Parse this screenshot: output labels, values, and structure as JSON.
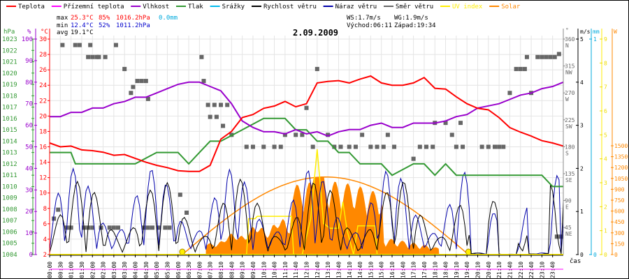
{
  "chart_data": {
    "type": "line",
    "title": "2.09.2009",
    "xlabel": "čas",
    "legend_position": "top",
    "legend": [
      {
        "name": "Teplota",
        "color": "#ff0000"
      },
      {
        "name": "Přízemní teplota",
        "color": "#ff00ff"
      },
      {
        "name": "Vlhkost",
        "color": "#9900cc"
      },
      {
        "name": "Tlak",
        "color": "#339933"
      },
      {
        "name": "Srážky",
        "color": "#00bbee"
      },
      {
        "name": "Rychlost větru",
        "color": "#000000"
      },
      {
        "name": "Náraz větru",
        "color": "#0000aa"
      },
      {
        "name": "Směr větru",
        "color": "#666666"
      },
      {
        "name": "UV index",
        "color": "#ffee00"
      },
      {
        "name": "Solar",
        "color": "#ff8800"
      }
    ],
    "stats": {
      "max_label": "max",
      "max_temp": "25.3°C",
      "max_hum": "85%",
      "max_press": "1016.2hPa",
      "max_rain": "0.0mm",
      "min_label": "min",
      "min_temp": "12.4°C",
      "min_hum": "52%",
      "min_press": "1011.2hPa",
      "avg_label": "avg",
      "avg_temp": "19.1°C",
      "ws": "WS:1.7m/s",
      "wg": "WG:1.9m/s",
      "sunrise": "Východ:06:11",
      "sunset": "Západ:19:34"
    },
    "axes": {
      "pressure": {
        "unit": "hPa",
        "range": [
          1004,
          1023
        ],
        "ticks": [
          "1023",
          "1022",
          "1021",
          "1020",
          "1019",
          "1018",
          "1017",
          "1016",
          "1015",
          "1014",
          "1013",
          "1012",
          "1011",
          "1010",
          "1009",
          "1008",
          "1007",
          "1006",
          "1005",
          "1004"
        ],
        "color": "#339933"
      },
      "humidity": {
        "unit": "%",
        "range": [
          0,
          100
        ],
        "ticks": [
          "100",
          "90",
          "80",
          "70",
          "60",
          "50",
          "40",
          "30",
          "20",
          "10",
          "0"
        ],
        "color": "#9900cc"
      },
      "temperature": {
        "unit": "°C",
        "range": [
          2,
          30
        ],
        "ticks": [
          "30",
          "28",
          "26",
          "24",
          "22",
          "20",
          "18",
          "16",
          "14",
          "12",
          "10",
          "8",
          "6",
          "4",
          "2"
        ],
        "color": "#ff0000"
      },
      "direction": {
        "unit": "°",
        "range": [
          0,
          360
        ],
        "ticks": [
          {
            "v": "360",
            "d": "N"
          },
          {
            "v": "315",
            "d": "NW"
          },
          {
            "v": "270",
            "d": "W"
          },
          {
            "v": "225",
            "d": "SW"
          },
          {
            "v": "180",
            "d": "S"
          },
          {
            "v": "135",
            "d": "SE"
          },
          {
            "v": "90",
            "d": "E"
          },
          {
            "v": "45",
            "d": "NE"
          }
        ],
        "color": "#666666"
      },
      "wind": {
        "unit": "m/s",
        "range": [
          0,
          5
        ],
        "ticks": [
          "5",
          "4",
          "3",
          "2",
          "1",
          "0"
        ],
        "color": "#000000"
      },
      "rain": {
        "unit": "mm",
        "range": [
          0,
          1
        ],
        "ticks": [
          "1",
          "0"
        ],
        "color": "#00aadd"
      },
      "uv": {
        "unit": "",
        "range": [
          0,
          9
        ],
        "ticks": [
          "9",
          "8",
          "7",
          "6",
          "5",
          "4",
          "3",
          "2",
          "1",
          "0"
        ],
        "color": "#ffee00"
      },
      "solar": {
        "unit": "W",
        "range": [
          0,
          1500
        ],
        "ticks": [
          "1500",
          "1350",
          "1200",
          "1050",
          "900",
          "750",
          "600",
          "450",
          "300",
          "150",
          "0"
        ],
        "color": "#ff8800"
      }
    },
    "x_ticks": [
      "00:00",
      "00:30",
      "01:00",
      "01:30",
      "02:00",
      "02:30",
      "03:00",
      "03:30",
      "04:00",
      "04:30",
      "05:00",
      "05:30",
      "06:00",
      "06:30",
      "07:00",
      "07:30",
      "08:10",
      "08:40",
      "09:10",
      "09:40",
      "10:10",
      "10:40",
      "11:10",
      "11:40",
      "12:10",
      "12:40",
      "13:10",
      "13:40",
      "14:10",
      "14:40",
      "15:10",
      "15:40",
      "16:10",
      "16:40",
      "17:10",
      "17:40",
      "18:10",
      "18:40",
      "19:10",
      "19:40",
      "20:10",
      "20:40",
      "21:10",
      "21:40",
      "22:10",
      "22:40",
      "23:10",
      "23:40"
    ],
    "series": [
      {
        "name": "Teplota",
        "unit": "°C",
        "x_hours": [
          0,
          0.5,
          1,
          1.5,
          2,
          2.5,
          3,
          3.5,
          4,
          4.5,
          5,
          5.5,
          6,
          6.5,
          7,
          7.5,
          8,
          8.5,
          9,
          9.5,
          10,
          10.5,
          11,
          11.5,
          12,
          12.5,
          13,
          13.5,
          14,
          14.5,
          15,
          15.5,
          16,
          16.5,
          17,
          17.5,
          18,
          18.5,
          19,
          19.5,
          20,
          20.5,
          21,
          21.5,
          22,
          22.5,
          23,
          23.5,
          24
        ],
        "values": [
          16.5,
          16.0,
          16.1,
          15.6,
          15.5,
          15.3,
          14.9,
          15.0,
          14.5,
          14.0,
          13.6,
          13.3,
          12.9,
          12.8,
          12.8,
          13.6,
          17.0,
          18.0,
          19.8,
          20.2,
          21.0,
          21.3,
          21.9,
          21.2,
          21.6,
          24.3,
          24.5,
          24.6,
          24.3,
          24.8,
          25.2,
          24.3,
          24.0,
          24.0,
          24.3,
          25.0,
          23.6,
          23.5,
          22.5,
          21.6,
          21.0,
          20.8,
          19.8,
          18.5,
          17.9,
          17.4,
          16.8,
          16.5,
          16.1
        ]
      },
      {
        "name": "Vlhkost",
        "unit": "%",
        "x_hours": [
          0,
          0.5,
          1,
          1.5,
          2,
          2.5,
          3,
          3.5,
          4,
          4.5,
          5,
          5.5,
          6,
          6.5,
          7,
          7.5,
          8,
          8.5,
          9,
          9.5,
          10,
          10.5,
          11,
          11.5,
          12,
          12.5,
          13,
          13.5,
          14,
          14.5,
          15,
          15.5,
          16,
          16.5,
          17,
          17.5,
          18,
          18.5,
          19,
          19.5,
          20,
          20.5,
          21,
          21.5,
          22,
          22.5,
          23,
          23.5,
          24
        ],
        "values": [
          64,
          64,
          66,
          66,
          68,
          68,
          70,
          71,
          73,
          73,
          75,
          77,
          79,
          80,
          80,
          78,
          76,
          70,
          62,
          59,
          57,
          57,
          56,
          58,
          56,
          57,
          55,
          57,
          58,
          58,
          60,
          61,
          59,
          59,
          61,
          61,
          61,
          62,
          64,
          65,
          68,
          69,
          70,
          72,
          74,
          75,
          77,
          78,
          80
        ]
      },
      {
        "name": "Tlak",
        "unit": "hPa",
        "x_hours": [
          0,
          1,
          1.2,
          1.8,
          2,
          2.5,
          3,
          4,
          5,
          6,
          6.5,
          7,
          7.5,
          8,
          9,
          10,
          11,
          11.5,
          12,
          12.5,
          13,
          13.5,
          14,
          14.5,
          15,
          15.5,
          16,
          17,
          17.5,
          18,
          18.5,
          19,
          20,
          22,
          23,
          23.5,
          24
        ],
        "values": [
          1013,
          1013,
          1012,
          1012,
          1012,
          1012,
          1012,
          1012,
          1013,
          1013,
          1012,
          1013,
          1014,
          1014,
          1015,
          1016,
          1016,
          1015,
          1015,
          1014,
          1014,
          1013,
          1013,
          1012,
          1012,
          1012,
          1011,
          1012,
          1012,
          1011,
          1012,
          1011,
          1011,
          1011,
          1011,
          1010,
          1010
        ]
      },
      {
        "name": "UV index",
        "unit": "",
        "peak": 4.4,
        "peak_time": "12:40"
      },
      {
        "name": "Solar",
        "unit": "W",
        "peak": 1070,
        "peak_time": "13:00"
      }
    ]
  }
}
